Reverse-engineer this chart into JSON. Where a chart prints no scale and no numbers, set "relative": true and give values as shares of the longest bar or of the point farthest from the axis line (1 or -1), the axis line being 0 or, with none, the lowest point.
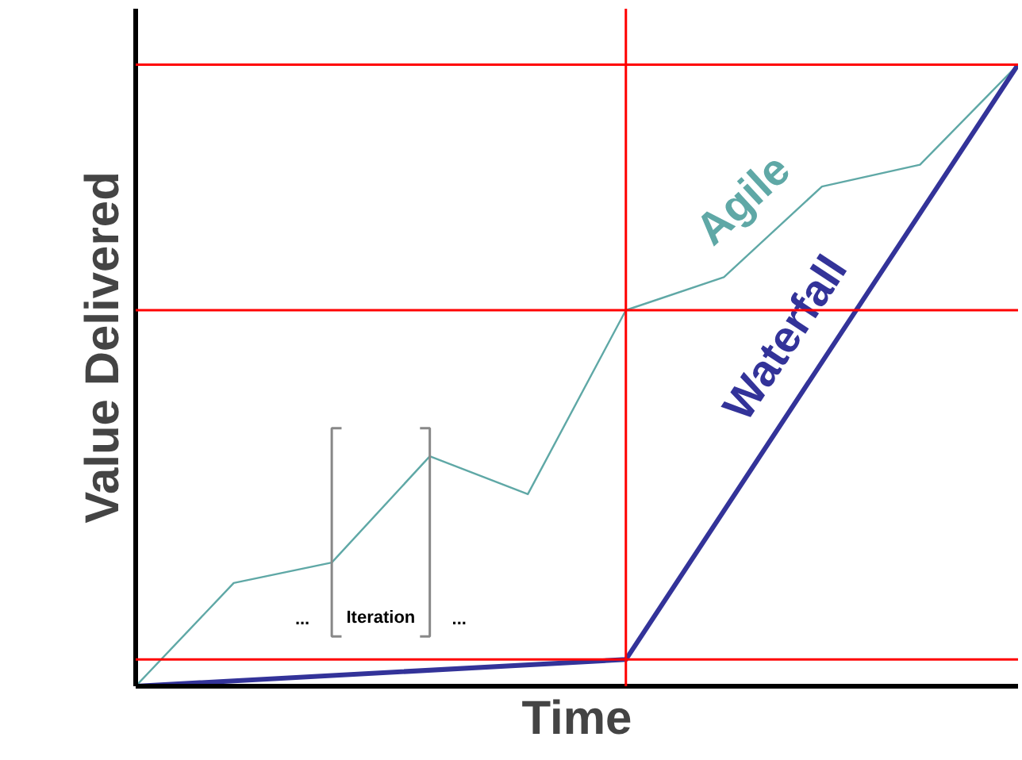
{
  "chart_data": {
    "type": "line",
    "relative": true,
    "xlabel": "Time",
    "ylabel": "Value Delivered",
    "categories": [
      null,
      null,
      null,
      null,
      null,
      null,
      null,
      null,
      null,
      null
    ],
    "series": [
      {
        "name": "Agile",
        "color": "#5fa8a6",
        "values": [
          0,
          0.166,
          0.199,
          0.37,
          0.309,
          0.605,
          0.658,
          0.804,
          0.839,
          1
        ]
      },
      {
        "name": "Waterfall",
        "color": "#333399",
        "values": [
          0,
          null,
          null,
          null,
          null,
          0.043,
          null,
          null,
          null,
          1
        ]
      }
    ],
    "ref_lines": [
      {
        "axis": "y",
        "value": 1,
        "color": "#ff0000"
      },
      {
        "axis": "y",
        "value": 0.605,
        "color": "#ff0000"
      },
      {
        "axis": "y",
        "value": 0.043,
        "color": "#ff0000"
      }
    ],
    "annotations": [
      "...",
      "Iteration",
      "..."
    ]
  }
}
